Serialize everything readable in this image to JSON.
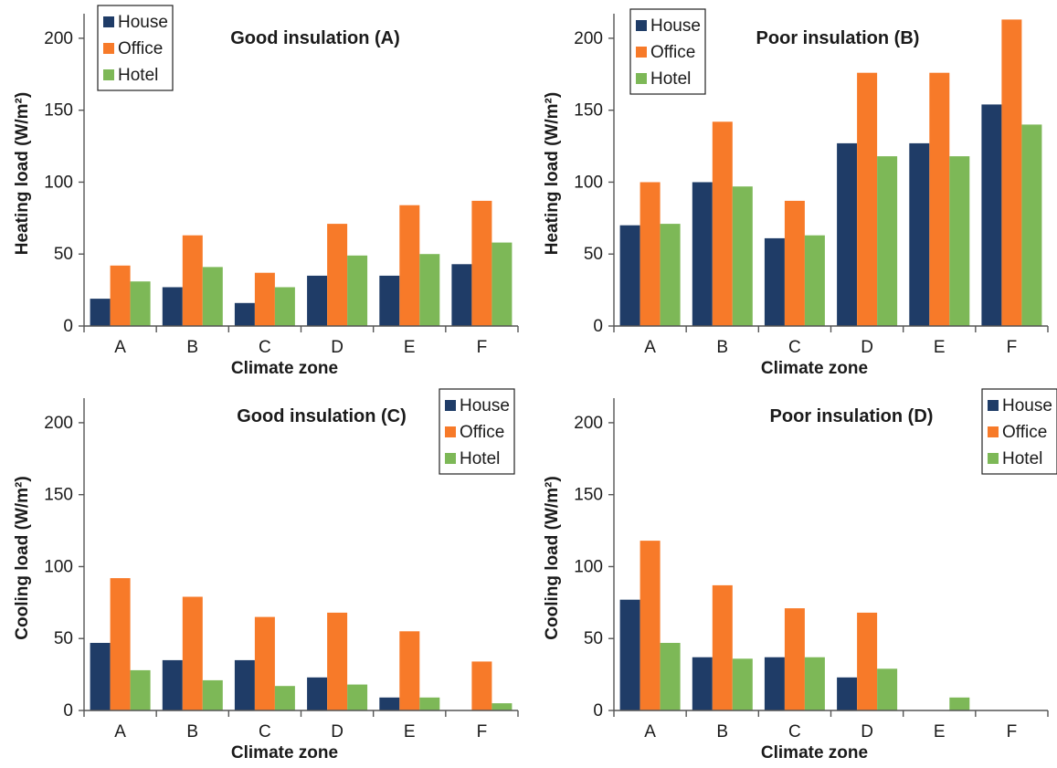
{
  "colors": {
    "House": "#1f3c67",
    "Office": "#f77a29",
    "Hotel": "#7db857"
  },
  "chart_data": [
    {
      "type": "bar",
      "title": "Good insulation (A)",
      "xlabel": "Climate zone",
      "ylabel": "Heating load (W/m²)",
      "ylim": [
        0,
        212
      ],
      "yticks": [
        0,
        50,
        100,
        150,
        200
      ],
      "legend_position": "top-left",
      "categories": [
        "A",
        "B",
        "C",
        "D",
        "E",
        "F"
      ],
      "series": [
        {
          "name": "House",
          "values": [
            19,
            27,
            16,
            35,
            35,
            43
          ]
        },
        {
          "name": "Office",
          "values": [
            42,
            63,
            37,
            71,
            84,
            87
          ]
        },
        {
          "name": "Hotel",
          "values": [
            31,
            41,
            27,
            49,
            50,
            58
          ]
        }
      ]
    },
    {
      "type": "bar",
      "title": "Poor insulation (B)",
      "xlabel": "Climate zone",
      "ylabel": "Heating load (W/m²)",
      "ylim": [
        0,
        212
      ],
      "yticks": [
        0,
        50,
        100,
        150,
        200
      ],
      "legend_position": "top-left",
      "categories": [
        "A",
        "B",
        "C",
        "D",
        "E",
        "F"
      ],
      "series": [
        {
          "name": "House",
          "values": [
            70,
            100,
            61,
            127,
            127,
            154
          ]
        },
        {
          "name": "Office",
          "values": [
            100,
            142,
            87,
            176,
            176,
            213
          ]
        },
        {
          "name": "Hotel",
          "values": [
            71,
            97,
            63,
            118,
            118,
            140
          ]
        }
      ]
    },
    {
      "type": "bar",
      "title": "Good insulation (C)",
      "xlabel": "Climate zone",
      "ylabel": "Cooling load (W/m²)",
      "ylim": [
        0,
        212
      ],
      "yticks": [
        0,
        50,
        100,
        150,
        200
      ],
      "legend_position": "top-right",
      "categories": [
        "A",
        "B",
        "C",
        "D",
        "E",
        "F"
      ],
      "series": [
        {
          "name": "House",
          "values": [
            47,
            35,
            35,
            23,
            9,
            0
          ]
        },
        {
          "name": "Office",
          "values": [
            92,
            79,
            65,
            68,
            55,
            34
          ]
        },
        {
          "name": "Hotel",
          "values": [
            28,
            21,
            17,
            18,
            9,
            5
          ]
        }
      ]
    },
    {
      "type": "bar",
      "title": "Poor insulation (D)",
      "xlabel": "Climate zone",
      "ylabel": "Cooling load (W/m²)",
      "ylim": [
        0,
        212
      ],
      "yticks": [
        0,
        50,
        100,
        150,
        200
      ],
      "legend_position": "top-right",
      "categories": [
        "A",
        "B",
        "C",
        "D",
        "E",
        "F"
      ],
      "series": [
        {
          "name": "House",
          "values": [
            77,
            37,
            37,
            23,
            0,
            0
          ]
        },
        {
          "name": "Office",
          "values": [
            118,
            87,
            71,
            68,
            0,
            0
          ]
        },
        {
          "name": "Hotel",
          "values": [
            47,
            36,
            37,
            29,
            9,
            0
          ]
        }
      ]
    }
  ]
}
